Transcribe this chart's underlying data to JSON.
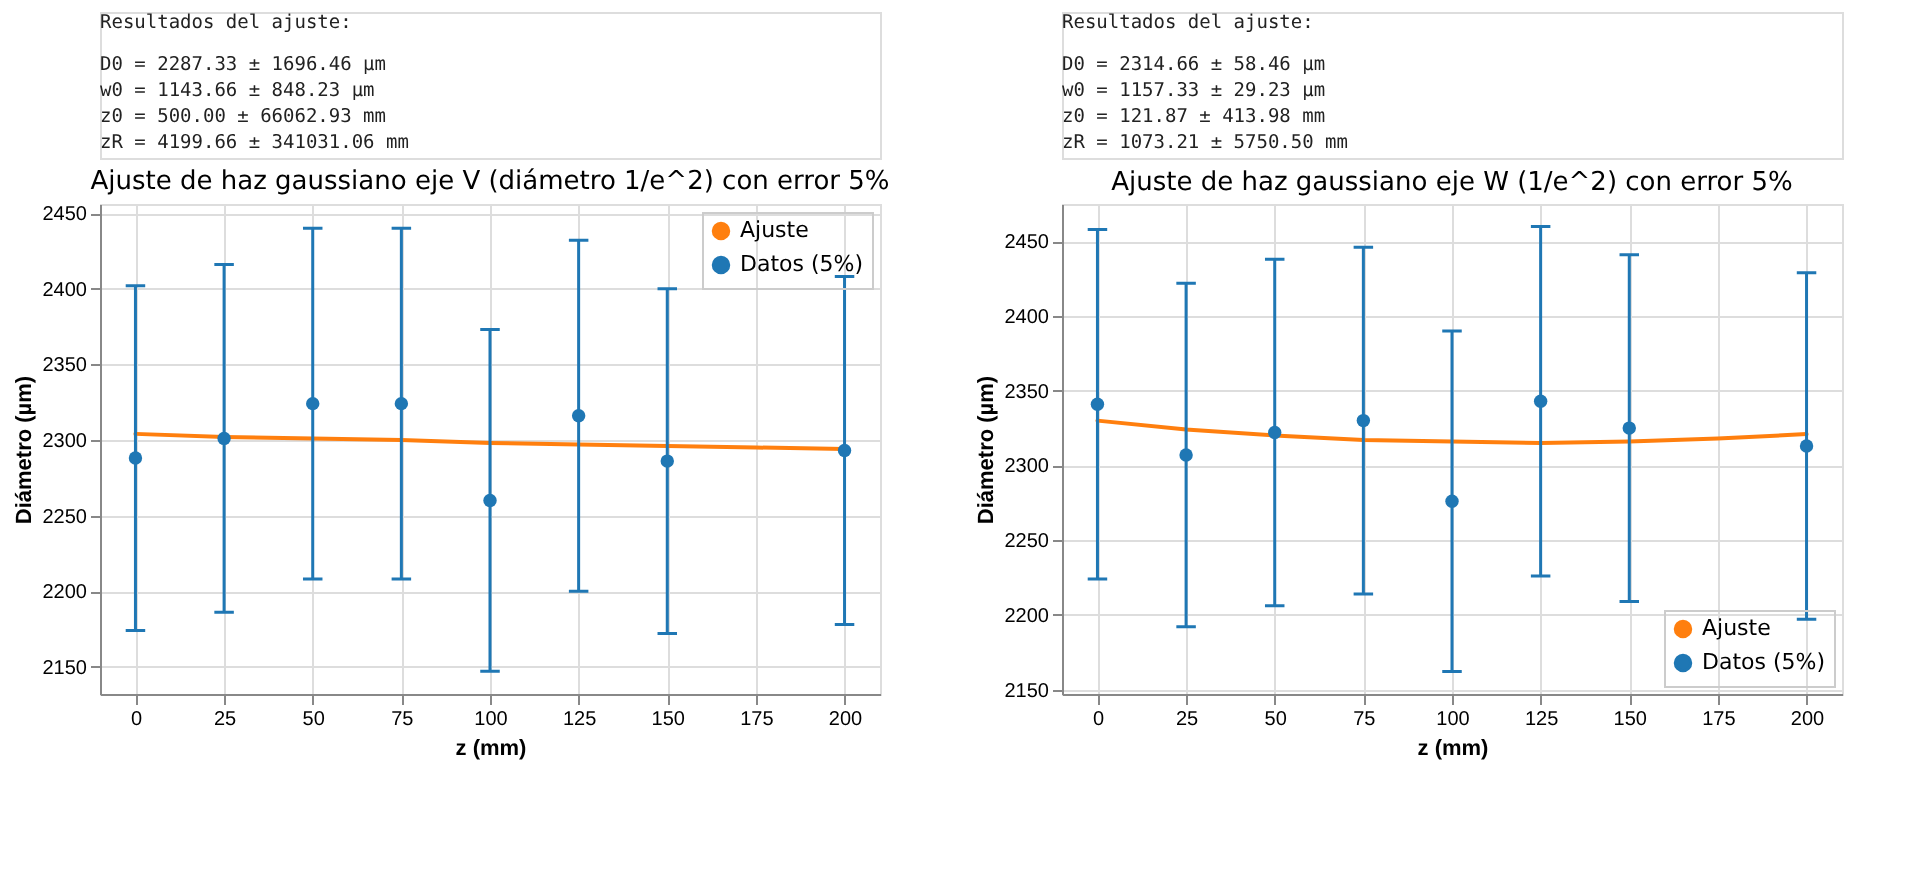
{
  "chart_data": [
    {
      "type": "scatter",
      "title": "Ajuste de haz gaussiano eje V (diámetro 1/e^2) con error 5%",
      "xlabel": "z (mm)",
      "ylabel": "Diámetro (µm)",
      "annotations": [
        "Resultados del ajuste:",
        "D0 = 2287.33 ± 1696.46 µm",
        "w0 = 1143.66 ± 848.23 µm",
        "z0 = 500.00 ± 66062.93 mm",
        "zR = 4199.66 ± 341031.06 mm"
      ],
      "xlim": [
        -10,
        210
      ],
      "xticks": [
        0,
        25,
        50,
        75,
        100,
        125,
        150,
        175,
        200
      ],
      "ylim": [
        2132,
        2456
      ],
      "yticks": [
        2150,
        2200,
        2250,
        2300,
        2350,
        2400,
        2450
      ],
      "grid": true,
      "legend": "top right",
      "series": [
        {
          "name": "Ajuste",
          "type": "line",
          "color": "#ff7f0e",
          "marker": "none",
          "line_style": "solid",
          "x": [
            0,
            25,
            50,
            75,
            100,
            125,
            150,
            175,
            200
          ],
          "values": [
            2304,
            2302,
            2301,
            2300,
            2298,
            2297,
            2296,
            2295,
            2294
          ]
        },
        {
          "name": "Datos (5%)",
          "color": "#1f77b4",
          "marker": "circle",
          "x": [
            0,
            25,
            50,
            75,
            100,
            125,
            150,
            200
          ],
          "values": [
            2288,
            2301,
            2324,
            2324,
            2260,
            2316,
            2286,
            2293
          ],
          "errors": [
            114,
            115,
            116,
            116,
            113,
            116,
            114,
            115
          ]
        }
      ]
    },
    {
      "type": "scatter",
      "title": "Ajuste de haz gaussiano eje W (1/e^2) con error 5%",
      "xlabel": "z (mm)",
      "ylabel": "Diámetro (µm)",
      "annotations": [
        "Resultados del ajuste:",
        "D0 = 2314.66 ± 58.46 µm",
        "w0 = 1157.33 ± 29.23 µm",
        "z0 = 121.87 ± 413.98 mm",
        "zR = 1073.21 ± 5750.50 mm"
      ],
      "xlim": [
        -10,
        210
      ],
      "xticks": [
        0,
        25,
        50,
        75,
        100,
        125,
        150,
        175,
        200
      ],
      "ylim": [
        2147,
        2475
      ],
      "yticks": [
        2150,
        2200,
        2250,
        2300,
        2350,
        2400,
        2450
      ],
      "grid": true,
      "legend": "bottom right",
      "series": [
        {
          "name": "Ajuste",
          "type": "line",
          "color": "#ff7f0e",
          "marker": "none",
          "line_style": "solid",
          "x": [
            0,
            25,
            50,
            75,
            100,
            125,
            150,
            175,
            200
          ],
          "values": [
            2330,
            2324,
            2320,
            2317,
            2316,
            2315,
            2316,
            2318,
            2321
          ]
        },
        {
          "name": "Datos (5%)",
          "color": "#1f77b4",
          "marker": "circle",
          "x": [
            0,
            25,
            50,
            75,
            100,
            125,
            150,
            200
          ],
          "values": [
            2341,
            2307,
            2322,
            2330,
            2276,
            2343,
            2325,
            2313
          ],
          "errors": [
            117,
            115,
            116,
            116,
            114,
            117,
            116,
            116
          ]
        }
      ]
    }
  ]
}
